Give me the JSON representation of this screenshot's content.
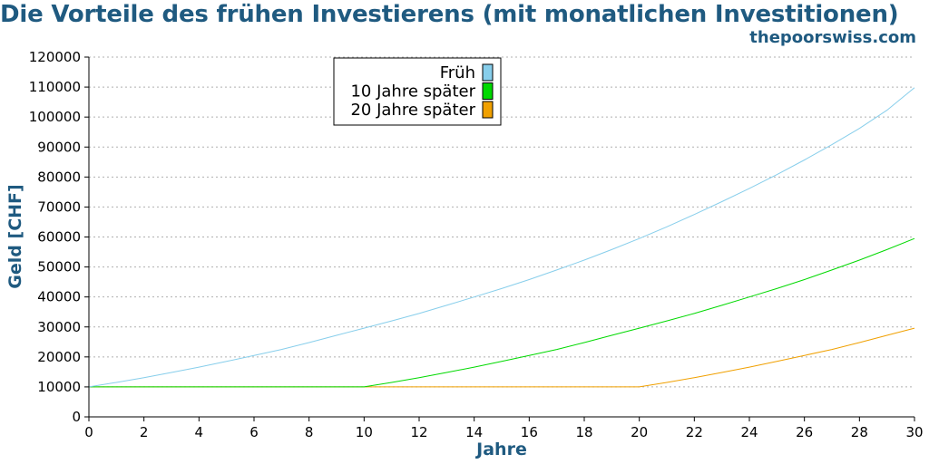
{
  "header": {
    "title": "Die Vorteile des frühen Investierens (mit monatlichen Investitionen)",
    "source": "thepoorswiss.com"
  },
  "colors": {
    "title": "#1f5a80",
    "grid": "#b0b0b0",
    "axis": "#000000"
  },
  "chart_data": {
    "type": "line",
    "xlabel": "Jahre",
    "ylabel": "Geld [CHF]",
    "xlim": [
      0,
      30
    ],
    "ylim": [
      0,
      120000
    ],
    "xticks": [
      0,
      2,
      4,
      6,
      8,
      10,
      12,
      14,
      16,
      18,
      20,
      22,
      24,
      26,
      28,
      30
    ],
    "yticks": [
      0,
      10000,
      20000,
      30000,
      40000,
      50000,
      60000,
      70000,
      80000,
      90000,
      100000,
      110000,
      120000
    ],
    "grid": "horizontal-dotted",
    "legend_position": "top-center",
    "x": [
      0,
      1,
      2,
      3,
      4,
      5,
      6,
      7,
      8,
      9,
      10,
      11,
      12,
      13,
      14,
      15,
      16,
      17,
      18,
      19,
      20,
      21,
      22,
      23,
      24,
      25,
      26,
      27,
      28,
      29,
      30
    ],
    "series": [
      {
        "name": "Früh",
        "color": "#87ceeb",
        "values": [
          10000,
          11500,
          13100,
          14800,
          16600,
          18500,
          20500,
          22500,
          24800,
          27200,
          29600,
          32000,
          34500,
          37200,
          40000,
          42800,
          45800,
          49000,
          52300,
          55800,
          59500,
          63400,
          67500,
          71800,
          76200,
          80800,
          85700,
          90800,
          96200,
          102300,
          109800
        ]
      },
      {
        "name": "10 Jahre später",
        "color": "#00d900",
        "values": [
          10000,
          10000,
          10000,
          10000,
          10000,
          10000,
          10000,
          10000,
          10000,
          10000,
          10000,
          11500,
          13100,
          14800,
          16600,
          18500,
          20500,
          22500,
          24800,
          27200,
          29600,
          32000,
          34500,
          37200,
          40000,
          42800,
          45800,
          49000,
          52300,
          55800,
          59500
        ]
      },
      {
        "name": "20 Jahre später",
        "color": "#f0a000",
        "values": [
          10000,
          10000,
          10000,
          10000,
          10000,
          10000,
          10000,
          10000,
          10000,
          10000,
          10000,
          10000,
          10000,
          10000,
          10000,
          10000,
          10000,
          10000,
          10000,
          10000,
          10000,
          11500,
          13100,
          14800,
          16600,
          18500,
          20500,
          22500,
          24800,
          27200,
          29600
        ]
      }
    ]
  }
}
